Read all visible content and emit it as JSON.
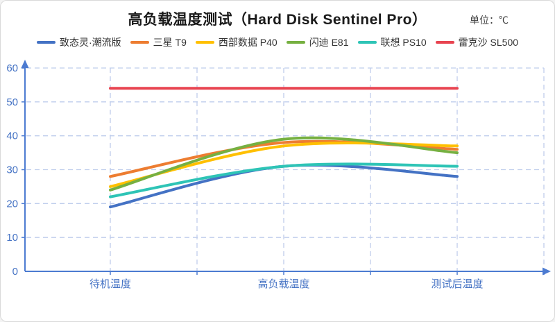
{
  "card": {
    "unit_label": "单位：℃"
  },
  "chart_data": {
    "type": "line",
    "smooth": true,
    "title": "高负载温度测试（Hard Disk Sentinel Pro）",
    "categories": [
      "待机温度",
      "高负载温度",
      "测试后温度"
    ],
    "series": [
      {
        "name": "致态灵·潮流版",
        "color": "#4472C4",
        "values": [
          19,
          31,
          28
        ]
      },
      {
        "name": "三星 T9",
        "color": "#ED7D31",
        "values": [
          28,
          38,
          36
        ]
      },
      {
        "name": "西部数据 P40",
        "color": "#FFC000",
        "values": [
          25,
          37,
          37
        ]
      },
      {
        "name": "闪迪 E81",
        "color": "#76B041",
        "values": [
          24,
          39,
          35
        ]
      },
      {
        "name": "联想 PS10",
        "color": "#2EC4B6",
        "values": [
          22,
          31,
          31
        ]
      },
      {
        "name": "雷克沙 SL500",
        "color": "#E84450",
        "values": [
          54,
          54,
          54
        ]
      }
    ],
    "ylim": [
      0,
      60
    ],
    "ytick_step": 10,
    "grid": true,
    "legend_position": "top",
    "axis_color": "#4C7BD1",
    "grid_color": "#BFCDEC",
    "tick_label_color": "#4472C4"
  }
}
